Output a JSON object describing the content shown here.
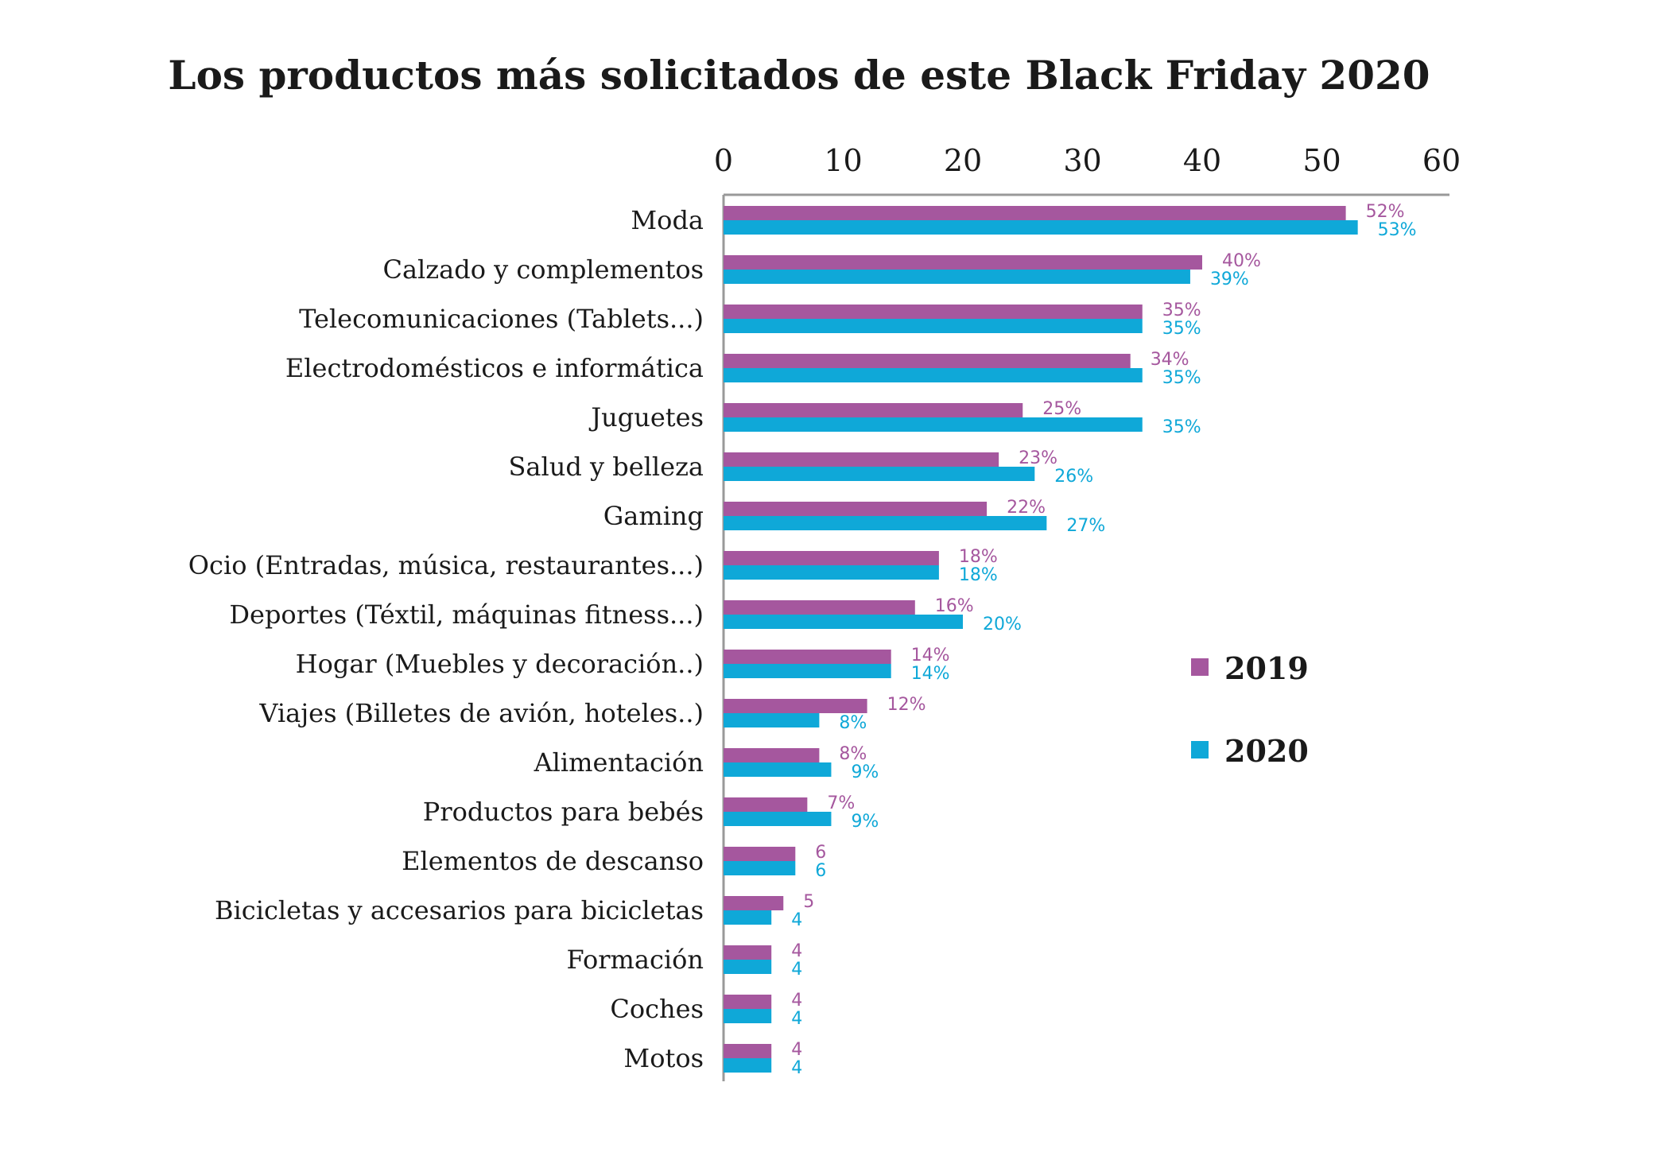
{
  "chart_data": {
    "type": "bar",
    "orientation": "horizontal",
    "title": "Los productos más solicitados de este Black Friday 2020",
    "xlim": [
      0,
      60
    ],
    "x_ticks": [
      0,
      10,
      20,
      30,
      40,
      50,
      60
    ],
    "x_tick_labels": [
      "0",
      "10",
      "20",
      "30",
      "40",
      "50",
      "60"
    ],
    "axis_position": "top",
    "grid": false,
    "legend_position": "right",
    "categories": [
      "Moda",
      "Calzado y complementos",
      "Telecomunicaciones (Tablets...)",
      "Electrodomésticos e informática",
      "Juguetes",
      "Salud y belleza",
      "Gaming",
      "Ocio (Entradas, música, restaurantes...)",
      "Deportes (Téxtil, máquinas fitness...)",
      "Hogar (Muebles y decoración..)",
      "Viajes (Billetes de avión, hoteles..)",
      "Alimentación",
      "Productos para bebés",
      "Elementos de descanso",
      "Bicicletas y accesarios para bicicletas",
      "Formación",
      "Coches",
      "Motos"
    ],
    "series": [
      {
        "name": "2019",
        "color": "#a5579e",
        "values": [
          52,
          40,
          35,
          34,
          25,
          23,
          22,
          18,
          16,
          14,
          12,
          8,
          7,
          6,
          5,
          4,
          4,
          4
        ],
        "labels": [
          "52%",
          "40%",
          "35%",
          "34%",
          "25%",
          "23%",
          "22%",
          "18%",
          "16%",
          "14%",
          "12%",
          "8%",
          "7%",
          "6",
          "5",
          "4",
          "4",
          "4"
        ]
      },
      {
        "name": "2020",
        "color": "#0fa8d8",
        "values": [
          53,
          39,
          35,
          35,
          35,
          26,
          27,
          18,
          20,
          14,
          8,
          9,
          9,
          6,
          4,
          4,
          4,
          4
        ],
        "labels": [
          "53%",
          "39%",
          "35%",
          "35%",
          "35%",
          "26%",
          "27%",
          "18%",
          "20%",
          "14%",
          "8%",
          "9%",
          "9%",
          "6",
          "4",
          "4",
          "4",
          "4"
        ]
      }
    ]
  }
}
